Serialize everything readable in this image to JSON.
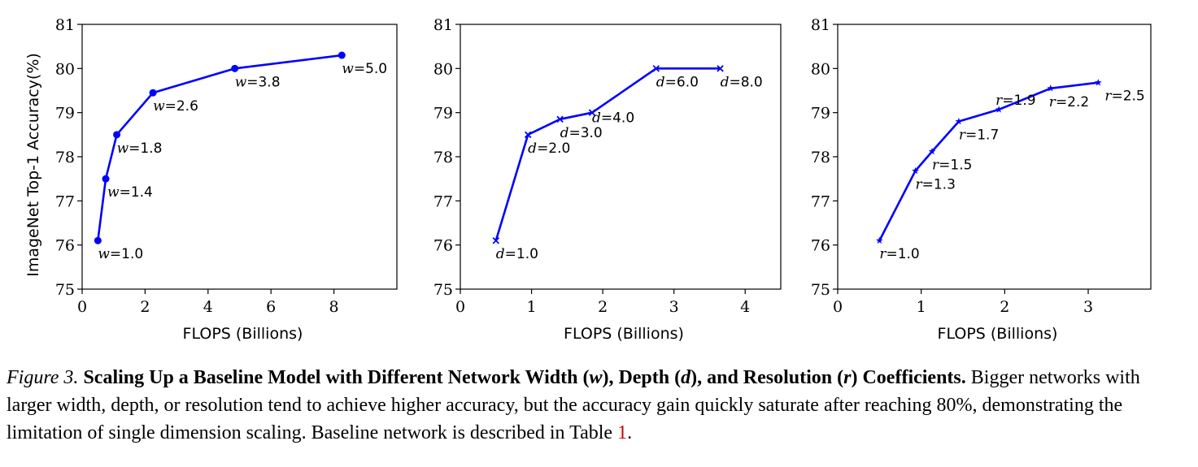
{
  "chart_data": [
    {
      "type": "line",
      "marker": "circle",
      "color": "#0000ff",
      "xlabel": "FLOPS (Billions)",
      "ylabel": "ImageNet Top-1 Accuracy(%)",
      "xlim": [
        0,
        10
      ],
      "ylim": [
        75,
        81
      ],
      "xticks": [
        0,
        2,
        4,
        6,
        8
      ],
      "yticks": [
        75,
        76,
        77,
        78,
        79,
        80,
        81
      ],
      "grid": false,
      "points": [
        {
          "x": 0.5,
          "y": 76.1,
          "var": "w",
          "label": "=1.0"
        },
        {
          "x": 0.75,
          "y": 77.5,
          "var": "w",
          "label": "=1.4"
        },
        {
          "x": 1.1,
          "y": 78.5,
          "var": "w",
          "label": "=1.8"
        },
        {
          "x": 2.25,
          "y": 79.45,
          "var": "w",
          "label": "=2.6"
        },
        {
          "x": 4.85,
          "y": 80.0,
          "var": "w",
          "label": "=3.8"
        },
        {
          "x": 8.25,
          "y": 80.3,
          "var": "w",
          "label": "=5.0"
        }
      ]
    },
    {
      "type": "line",
      "marker": "x",
      "color": "#0000ff",
      "xlabel": "FLOPS (Billions)",
      "ylabel": "",
      "xlim": [
        0,
        4.5
      ],
      "ylim": [
        75,
        81
      ],
      "xticks": [
        0,
        1,
        2,
        3,
        4
      ],
      "yticks": [
        75,
        76,
        77,
        78,
        79,
        80,
        81
      ],
      "grid": false,
      "points": [
        {
          "x": 0.5,
          "y": 76.1,
          "var": "d",
          "label": "=1.0"
        },
        {
          "x": 0.95,
          "y": 78.5,
          "var": "d",
          "label": "=2.0"
        },
        {
          "x": 1.4,
          "y": 78.85,
          "var": "d",
          "label": "=3.0"
        },
        {
          "x": 1.85,
          "y": 79.0,
          "var": "d",
          "label": "=4.0"
        },
        {
          "x": 2.75,
          "y": 80.0,
          "var": "d",
          "label": "=6.0"
        },
        {
          "x": 3.65,
          "y": 80.0,
          "var": "d",
          "label": "=8.0"
        }
      ]
    },
    {
      "type": "line",
      "marker": "star",
      "color": "#0000ff",
      "xlabel": "FLOPS (Billions)",
      "ylabel": "",
      "xlim": [
        0,
        3.75
      ],
      "ylim": [
        75,
        81
      ],
      "xticks": [
        0,
        1,
        2,
        3
      ],
      "yticks": [
        75,
        76,
        77,
        78,
        79,
        80,
        81
      ],
      "grid": false,
      "points": [
        {
          "x": 0.5,
          "y": 76.1,
          "var": "r",
          "label": "=1.0"
        },
        {
          "x": 0.93,
          "y": 77.68,
          "var": "r",
          "label": "=1.3"
        },
        {
          "x": 1.13,
          "y": 78.12,
          "var": "r",
          "label": "=1.5"
        },
        {
          "x": 1.45,
          "y": 78.8,
          "var": "r",
          "label": "=1.7"
        },
        {
          "x": 1.93,
          "y": 79.07,
          "var": "r",
          "label": "=1.9"
        },
        {
          "x": 2.55,
          "y": 79.55,
          "var": "r",
          "label": "=2.2"
        },
        {
          "x": 3.12,
          "y": 79.68,
          "var": "r",
          "label": "=2.5"
        }
      ]
    }
  ],
  "caption": {
    "label": "Figure 3.",
    "title_before_w": "Scaling Up a Baseline Model with Different Network Width (",
    "var_w": "w",
    "title_before_d": "), Depth (",
    "var_d": "d",
    "title_before_r": "), and Resolution (",
    "var_r": "r",
    "title_end": ") Coefficients.",
    "body": "Bigger networks with larger width, depth, or resolution tend to achieve higher accuracy, but the accuracy gain quickly saturate after reaching 80%, demonstrating the limitation of single dimension scaling. Baseline network is described in Table ",
    "table_ref": "1",
    "body_end": "."
  }
}
